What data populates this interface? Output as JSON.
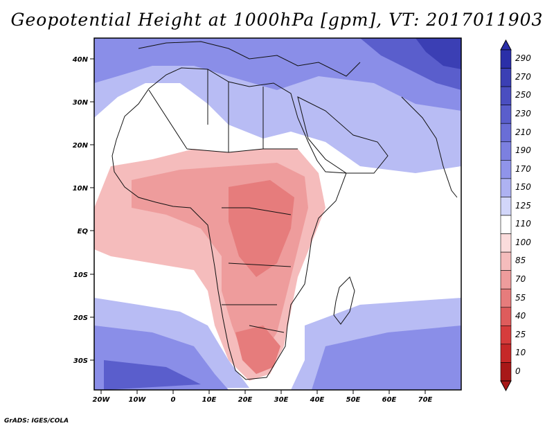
{
  "title": "Geopotential Height at 1000hPa [gpm], VT: 2017011903",
  "footer": "GrADS: IGES/COLA",
  "map": {
    "lon_range": [
      -22,
      80
    ],
    "lat_range": [
      -37,
      45
    ],
    "lon_ticks": [
      "20W",
      "10W",
      "0",
      "10E",
      "20E",
      "30E",
      "40E",
      "50E",
      "60E",
      "70E"
    ],
    "lat_ticks": [
      "40N",
      "30N",
      "20N",
      "10N",
      "EQ",
      "10S",
      "20S",
      "30S"
    ]
  },
  "colorbar": {
    "levels": [
      "290",
      "270",
      "250",
      "230",
      "210",
      "190",
      "170",
      "150",
      "125",
      "110",
      "100",
      "85",
      "70",
      "55",
      "40",
      "25",
      "10",
      "0"
    ],
    "colors": [
      "#2b2fa8",
      "#3b3fb4",
      "#4a4ec0",
      "#5a5ecc",
      "#6a6ed6",
      "#7c80e0",
      "#9094ea",
      "#aeb2f2",
      "#d2d6fa",
      "#ffffff",
      "#fbdcdc",
      "#f5bcbc",
      "#ee9c9c",
      "#e67c7c",
      "#de5c5c",
      "#d63c3c",
      "#c62828",
      "#a81818"
    ]
  }
}
